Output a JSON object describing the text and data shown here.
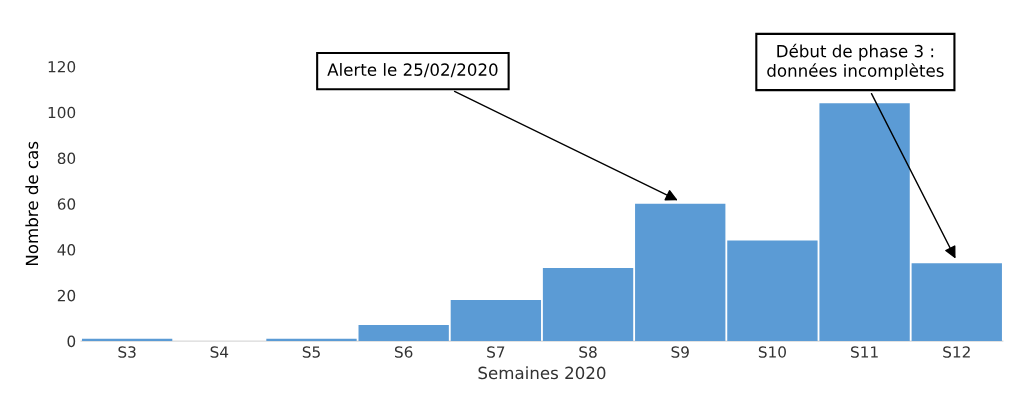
{
  "chart_data": {
    "type": "bar",
    "xlabel": "Semaines 2020",
    "ylabel": "Nombre de cas",
    "categories": [
      "S3",
      "S4",
      "S5",
      "S6",
      "S7",
      "S8",
      "S9",
      "S10",
      "S11",
      "S12"
    ],
    "values": [
      1,
      0,
      1,
      7,
      18,
      32,
      60,
      44,
      104,
      34
    ],
    "color": "#5b9bd5",
    "ylim": [
      0,
      120
    ],
    "yticks": [
      0,
      20,
      40,
      60,
      80,
      100,
      120
    ],
    "grid": false,
    "legend": false,
    "annotations": [
      {
        "text": "Alerte le 25/02/2020",
        "x": "S9",
        "y": 60
      },
      {
        "text": "Début de phase 3 :\ndonnées incomplètes",
        "x": "S12",
        "y": 34
      }
    ]
  }
}
